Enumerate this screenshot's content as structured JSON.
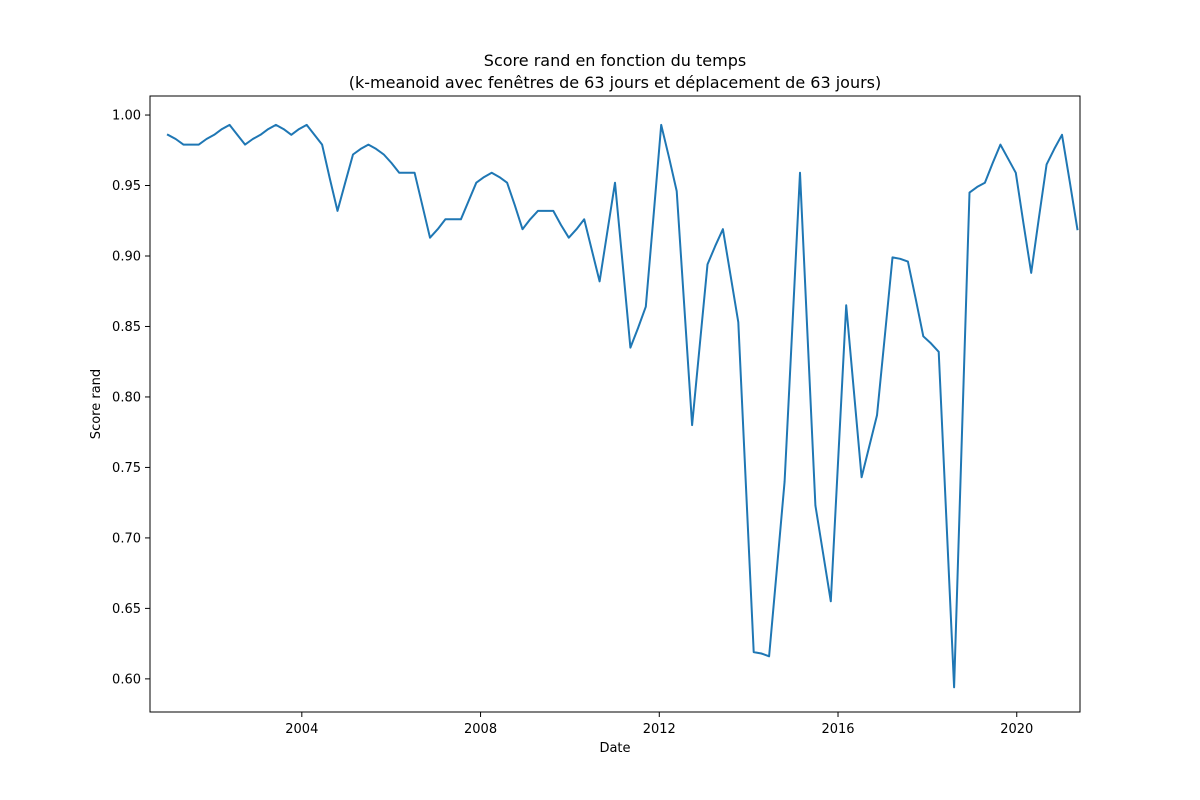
{
  "chart_data": {
    "type": "line",
    "title": "Score rand en fonction du temps",
    "subtitle": "(k-meanoid avec fenêtres de 63 jours et déplacement de 63 jours)",
    "xlabel": "Date",
    "ylabel": "Score rand",
    "x_ticks": [
      "2004",
      "2008",
      "2012",
      "2016",
      "2020"
    ],
    "y_ticks": [
      "0.60",
      "0.65",
      "0.70",
      "0.75",
      "0.80",
      "0.85",
      "0.90",
      "0.95",
      "1.00"
    ],
    "xlim": [
      "2000-08-08",
      "2021-06-01"
    ],
    "ylim": [
      0.5765,
      1.0135
    ],
    "grid": false,
    "line_color": "#1f77b4",
    "series": [
      {
        "x": [
          "2001-01-01",
          "2001-03-06",
          "2001-05-08",
          "2001-07-10",
          "2001-09-11",
          "2001-11-13",
          "2002-01-15",
          "2002-03-19",
          "2002-05-21",
          "2002-07-23",
          "2002-09-24",
          "2002-11-26",
          "2003-01-28",
          "2003-04-01",
          "2003-06-03",
          "2003-08-05",
          "2003-10-07",
          "2003-12-09",
          "2004-02-10",
          "2004-04-13",
          "2004-06-15",
          "2004-08-17",
          "2004-10-19",
          "2004-12-21",
          "2005-02-22",
          "2005-04-26",
          "2005-06-28",
          "2005-08-30",
          "2005-11-01",
          "2006-01-03",
          "2006-03-07",
          "2006-05-09",
          "2006-07-11",
          "2006-09-12",
          "2006-11-14",
          "2007-01-16",
          "2007-03-20",
          "2007-05-22",
          "2007-07-24",
          "2007-09-25",
          "2007-11-27",
          "2008-01-29",
          "2008-04-01",
          "2008-06-03",
          "2008-08-05",
          "2008-10-07",
          "2008-12-09",
          "2009-02-10",
          "2009-04-14",
          "2009-06-16",
          "2009-08-18",
          "2009-10-20",
          "2009-12-22",
          "2010-02-23",
          "2010-04-27",
          "2010-06-29",
          "2010-08-31",
          "2010-11-02",
          "2011-01-04",
          "2011-03-08",
          "2011-05-10",
          "2011-07-12",
          "2011-09-13",
          "2011-11-15",
          "2012-01-17",
          "2012-03-20",
          "2012-05-22",
          "2012-07-24",
          "2012-09-25",
          "2012-11-27",
          "2013-01-29",
          "2013-04-02",
          "2013-06-04",
          "2013-08-06",
          "2013-10-08",
          "2013-12-10",
          "2014-02-11",
          "2014-04-15",
          "2014-06-17",
          "2014-08-19",
          "2014-10-21",
          "2014-12-23",
          "2015-02-24",
          "2015-04-28",
          "2015-06-30",
          "2015-09-01",
          "2015-11-03",
          "2016-01-05",
          "2016-03-08",
          "2016-05-10",
          "2016-07-12",
          "2016-09-13",
          "2016-11-15",
          "2017-01-17",
          "2017-03-21",
          "2017-05-23",
          "2017-07-25",
          "2017-09-26",
          "2017-11-28",
          "2018-01-30",
          "2018-04-03",
          "2018-06-05",
          "2018-08-07",
          "2018-10-09",
          "2018-12-11",
          "2019-02-12",
          "2019-04-16",
          "2019-06-18",
          "2019-08-20",
          "2019-10-22",
          "2019-12-24",
          "2020-02-25",
          "2020-04-28",
          "2020-06-30",
          "2020-09-01",
          "2020-11-03",
          "2021-01-05",
          "2021-03-09",
          "2021-05-11"
        ],
        "values": [
          0.986,
          0.983,
          0.979,
          0.979,
          0.979,
          0.983,
          0.986,
          0.99,
          0.993,
          0.986,
          0.979,
          0.983,
          0.986,
          0.99,
          0.993,
          0.99,
          0.986,
          0.99,
          0.993,
          0.986,
          0.979,
          0.955,
          0.932,
          0.952,
          0.972,
          0.976,
          0.979,
          0.976,
          0.972,
          0.966,
          0.959,
          0.959,
          0.959,
          0.936,
          0.913,
          0.919,
          0.926,
          0.926,
          0.926,
          0.939,
          0.952,
          0.956,
          0.959,
          0.956,
          0.952,
          0.936,
          0.919,
          0.926,
          0.932,
          0.932,
          0.932,
          0.922,
          0.913,
          0.919,
          0.926,
          0.904,
          0.882,
          0.917,
          0.952,
          0.894,
          0.835,
          0.849,
          0.864,
          0.928,
          0.993,
          0.97,
          0.946,
          0.863,
          0.78,
          0.837,
          0.894,
          0.907,
          0.919,
          0.886,
          0.853,
          0.736,
          0.619,
          0.618,
          0.616,
          0.678,
          0.74,
          0.849,
          0.959,
          0.841,
          0.723,
          0.689,
          0.655,
          0.76,
          0.865,
          0.804,
          0.743,
          0.765,
          0.787,
          0.843,
          0.899,
          0.898,
          0.896,
          0.87,
          0.843,
          0.838,
          0.832,
          0.713,
          0.594,
          0.77,
          0.945,
          0.949,
          0.952,
          0.966,
          0.979,
          0.969,
          0.959,
          0.923,
          0.888,
          0.927,
          0.965,
          0.976,
          0.986,
          0.953,
          0.919
        ]
      }
    ]
  }
}
